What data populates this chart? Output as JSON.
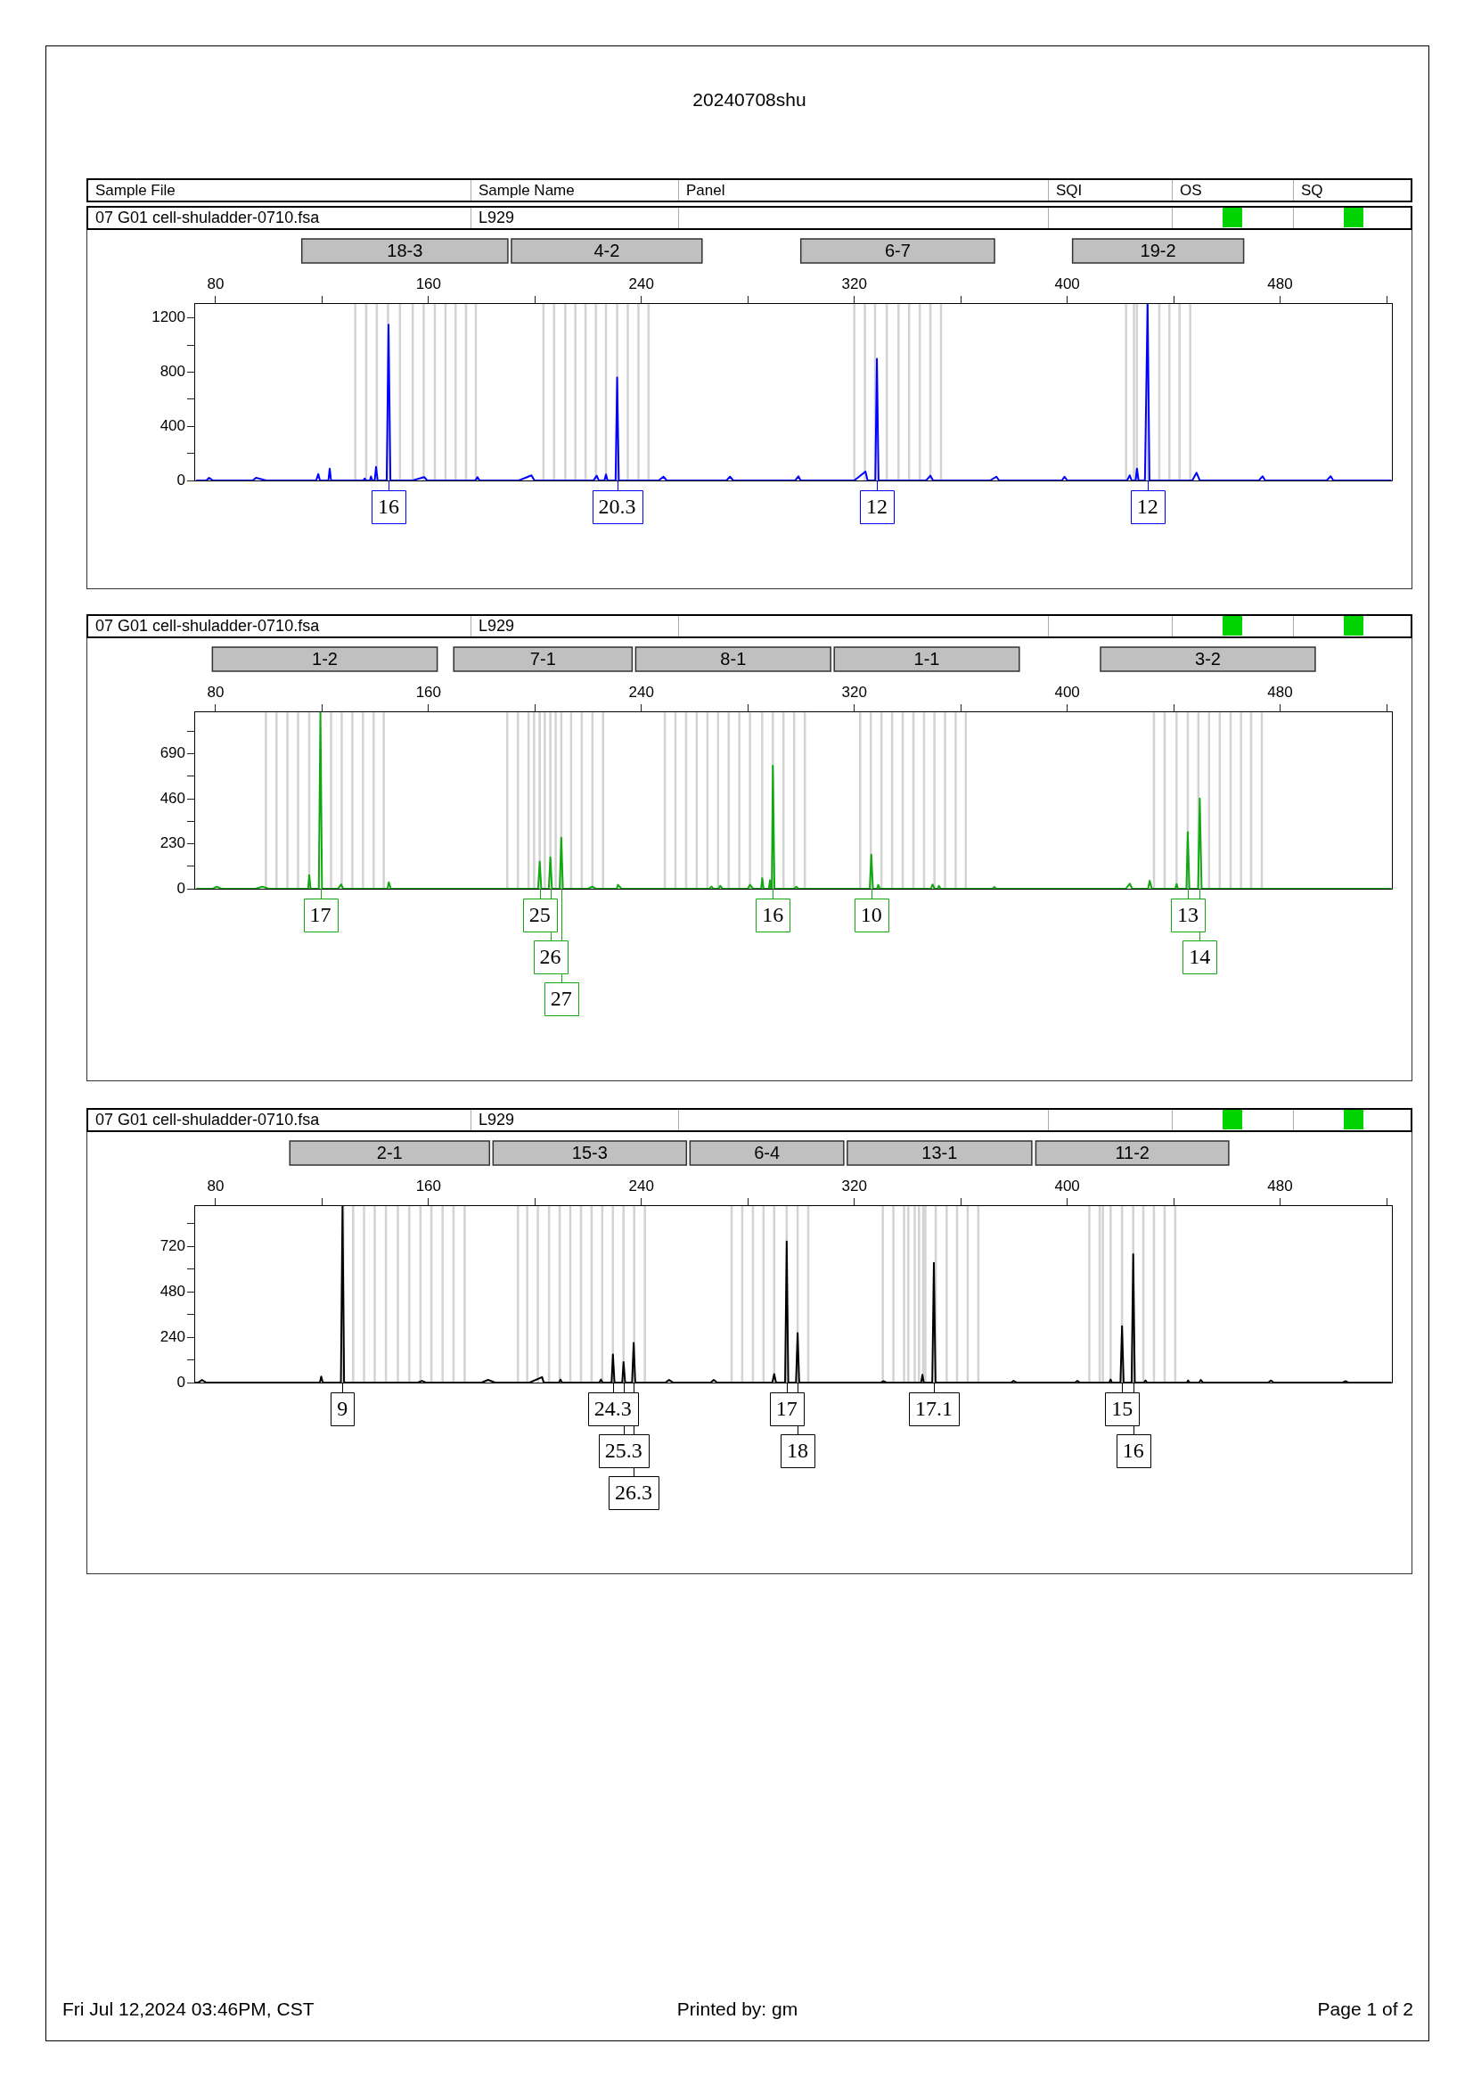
{
  "chart_data": [
    {
      "type": "other",
      "title": "20240708shu",
      "annotations": [
        "Sample File",
        "Sample Name",
        "Panel",
        "SQI",
        "OS",
        "SQ"
      ]
    },
    {
      "type": "line",
      "color": "#0000ff",
      "marker": "none",
      "xlim": [
        72,
        522
      ],
      "xticks": [
        80,
        {
          "value": 120,
          "label": null
        },
        160,
        {
          "value": 200,
          "label": null
        },
        240,
        {
          "value": 280,
          "label": null
        },
        320,
        {
          "value": 360,
          "label": null
        },
        400,
        {
          "value": 440,
          "label": null
        },
        480,
        {
          "value": 520,
          "label": null
        }
      ],
      "ylim": [
        0,
        1310
      ],
      "yticks": [
        0,
        {
          "value": 200,
          "label": null
        },
        400,
        {
          "value": 600,
          "label": null
        },
        800,
        {
          "value": 1000,
          "label": null
        },
        1200
      ],
      "x": [
        73,
        76.5,
        77.6,
        79,
        94,
        95.2,
        99,
        117.8,
        118.6,
        119.2,
        122.4,
        122.9,
        123.4,
        135.5,
        136,
        136.6,
        138,
        138.4,
        138.9,
        139.8,
        140.3,
        140.9,
        144.3,
        145,
        145.7,
        154,
        158.4,
        159.5,
        177.6,
        178.4,
        179.2,
        194,
        198.7,
        199.8,
        222,
        223.2,
        224,
        226.1,
        226.7,
        227.3,
        230.3,
        230.9,
        231.5,
        246.5,
        248.3,
        249.5,
        272,
        273.3,
        274.5,
        297.8,
        299,
        299.8,
        320,
        324.2,
        325,
        327.9,
        328.5,
        329.1,
        347,
        348.6,
        349.6,
        371,
        373.4,
        374.4,
        398,
        399,
        400,
        422.5,
        423.5,
        424.2,
        425.7,
        426.2,
        426.8,
        429.2,
        430.2,
        430.9,
        447,
        448.6,
        449.8,
        472,
        473.4,
        474.4,
        497.5,
        499,
        500,
        521.5
      ],
      "values": [
        0,
        0,
        20,
        0,
        0,
        20,
        0,
        0,
        47,
        0,
        0,
        88,
        0,
        0,
        15,
        0,
        0,
        30,
        0,
        0,
        100,
        0,
        0,
        1150,
        0,
        0,
        25,
        0,
        0,
        25,
        0,
        0,
        38,
        0,
        0,
        35,
        0,
        0,
        44,
        0,
        0,
        760,
        0,
        0,
        28,
        0,
        0,
        28,
        0,
        0,
        31,
        0,
        0,
        66,
        0,
        0,
        898,
        0,
        0,
        35,
        0,
        0,
        28,
        0,
        0,
        28,
        0,
        0,
        38,
        0,
        0,
        88,
        0,
        0,
        1310,
        0,
        0,
        57,
        0,
        0,
        31,
        0,
        0,
        31,
        0,
        0
      ],
      "annotations": [
        "07 G01 cell-shuladder-0710.fsa",
        "L929",
        "18-3",
        "4-2",
        "6-7",
        "19-2",
        {
          "text": "16",
          "x": 145
        },
        {
          "text": "20.3",
          "x": 230.9
        },
        {
          "text": "12",
          "x": 328.5
        },
        {
          "text": "12",
          "x": 430.2
        }
      ],
      "ref_lines": [
        {
          "axis": "x",
          "value": 132.5,
          "color": "#d3d3d3"
        },
        {
          "axis": "x",
          "value": 136.6,
          "color": "#d3d3d3"
        },
        {
          "axis": "x",
          "value": 140.6,
          "color": "#d3d3d3"
        },
        {
          "axis": "x",
          "value": 144.8,
          "color": "#d3d3d3"
        },
        {
          "axis": "x",
          "value": 149.3,
          "color": "#d3d3d3"
        },
        {
          "axis": "x",
          "value": 154.1,
          "color": "#d3d3d3"
        },
        {
          "axis": "x",
          "value": 158.2,
          "color": "#d3d3d3"
        },
        {
          "axis": "x",
          "value": 162.4,
          "color": "#d3d3d3"
        },
        {
          "axis": "x",
          "value": 166.4,
          "color": "#d3d3d3"
        },
        {
          "axis": "x",
          "value": 170.2,
          "color": "#d3d3d3"
        },
        {
          "axis": "x",
          "value": 174.1,
          "color": "#d3d3d3"
        },
        {
          "axis": "x",
          "value": 177.8,
          "color": "#d3d3d3"
        },
        {
          "axis": "x",
          "value": 203.2,
          "color": "#d3d3d3"
        },
        {
          "axis": "x",
          "value": 207.2,
          "color": "#d3d3d3"
        },
        {
          "axis": "x",
          "value": 211.4,
          "color": "#d3d3d3"
        },
        {
          "axis": "x",
          "value": 215.2,
          "color": "#d3d3d3"
        },
        {
          "axis": "x",
          "value": 219,
          "color": "#d3d3d3"
        },
        {
          "axis": "x",
          "value": 222.9,
          "color": "#d3d3d3"
        },
        {
          "axis": "x",
          "value": 226.7,
          "color": "#d3d3d3"
        },
        {
          "axis": "x",
          "value": 230.9,
          "color": "#d3d3d3"
        },
        {
          "axis": "x",
          "value": 234.9,
          "color": "#d3d3d3"
        },
        {
          "axis": "x",
          "value": 238.9,
          "color": "#d3d3d3"
        },
        {
          "axis": "x",
          "value": 242.7,
          "color": "#d3d3d3"
        },
        {
          "axis": "x",
          "value": 320,
          "color": "#d3d3d3"
        },
        {
          "axis": "x",
          "value": 324,
          "color": "#d3d3d3"
        },
        {
          "axis": "x",
          "value": 327.8,
          "color": "#d3d3d3"
        },
        {
          "axis": "x",
          "value": 332.2,
          "color": "#d3d3d3"
        },
        {
          "axis": "x",
          "value": 336.6,
          "color": "#d3d3d3"
        },
        {
          "axis": "x",
          "value": 340.6,
          "color": "#d3d3d3"
        },
        {
          "axis": "x",
          "value": 344.6,
          "color": "#d3d3d3"
        },
        {
          "axis": "x",
          "value": 348.6,
          "color": "#d3d3d3"
        },
        {
          "axis": "x",
          "value": 352.6,
          "color": "#d3d3d3"
        },
        {
          "axis": "x",
          "value": 422.1,
          "color": "#d3d3d3"
        },
        {
          "axis": "x",
          "value": 425.1,
          "color": "#d3d3d3"
        },
        {
          "axis": "x",
          "value": 426.2,
          "color": "#d3d3d3"
        },
        {
          "axis": "x",
          "value": 430.2,
          "color": "#d3d3d3"
        },
        {
          "axis": "x",
          "value": 434.6,
          "color": "#d3d3d3"
        },
        {
          "axis": "x",
          "value": 438.4,
          "color": "#d3d3d3"
        },
        {
          "axis": "x",
          "value": 442.2,
          "color": "#d3d3d3"
        },
        {
          "axis": "x",
          "value": 446.2,
          "color": "#d3d3d3"
        }
      ]
    },
    {
      "type": "line",
      "color": "#12a812",
      "marker": "none",
      "xlim": [
        72,
        522
      ],
      "xticks": [
        80,
        {
          "value": 120,
          "label": null
        },
        160,
        {
          "value": 200,
          "label": null
        },
        240,
        {
          "value": 280,
          "label": null
        },
        320,
        {
          "value": 360,
          "label": null
        },
        400,
        {
          "value": 440,
          "label": null
        },
        480,
        {
          "value": 520,
          "label": null
        }
      ],
      "ylim": [
        0,
        907
      ],
      "yticks": [
        0,
        {
          "value": 115,
          "label": null
        },
        230,
        {
          "value": 345,
          "label": null
        },
        460,
        {
          "value": 575,
          "label": null
        },
        690,
        {
          "value": 805,
          "label": null
        }
      ],
      "x": [
        73,
        79,
        80.5,
        82,
        95,
        97.6,
        100,
        114.8,
        115.2,
        115.7,
        118.8,
        119.4,
        120,
        126,
        127.2,
        128,
        144.6,
        145.1,
        145.8,
        201.2,
        201.8,
        202.4,
        205.2,
        205.8,
        206.4,
        209.3,
        209.9,
        210.5,
        220,
        221.6,
        223,
        230.8,
        231.2,
        232.5,
        265.5,
        266.4,
        267,
        269,
        269.6,
        270.5,
        280,
        280.8,
        282,
        285,
        285.4,
        285.9,
        287.9,
        288.3,
        288.7,
        289,
        289.4,
        290,
        297.5,
        298.2,
        299,
        325.8,
        326.4,
        327,
        328.6,
        329,
        329.6,
        348.8,
        349.4,
        350.2,
        351.4,
        351.8,
        352.4,
        372,
        372.6,
        373.4,
        422,
        423.5,
        424.4,
        430.4,
        431,
        431.8,
        440.6,
        441.1,
        441.6,
        444.8,
        445.3,
        445.9,
        449.2,
        449.8,
        450.5,
        521.5
      ],
      "values": [
        0,
        0,
        11,
        0,
        0,
        11,
        0,
        0,
        70,
        0,
        0,
        907,
        0,
        0,
        22,
        0,
        0,
        33,
        0,
        0,
        139,
        0,
        0,
        161,
        0,
        0,
        261,
        0,
        0,
        11,
        0,
        0,
        20,
        0,
        0,
        11,
        0,
        0,
        15,
        0,
        0,
        20,
        0,
        0,
        54,
        0,
        0,
        43,
        0,
        0,
        629,
        0,
        0,
        10,
        0,
        0,
        174,
        0,
        0,
        20,
        0,
        0,
        22,
        0,
        0,
        15,
        0,
        0,
        9,
        0,
        0,
        26,
        0,
        0,
        41,
        0,
        0,
        24,
        0,
        0,
        289,
        0,
        0,
        461,
        0,
        0
      ],
      "annotations": [
        "07 G01 cell-shuladder-0710.fsa",
        "L929",
        "1-2",
        "7-1",
        "8-1",
        "1-1",
        "3-2",
        {
          "text": "17",
          "x": 119.4
        },
        {
          "text": "25",
          "x": 201.8
        },
        {
          "text": "26",
          "x": 205.8
        },
        {
          "text": "27",
          "x": 209.9
        },
        {
          "text": "16",
          "x": 289.4
        },
        {
          "text": "10",
          "x": 326.4
        },
        {
          "text": "13",
          "x": 445.3
        },
        {
          "text": "14",
          "x": 449.8
        }
      ],
      "ref_lines": [
        {
          "axis": "x",
          "value": 98.9,
          "color": "#d3d3d3"
        },
        {
          "axis": "x",
          "value": 102.9,
          "color": "#d3d3d3"
        },
        {
          "axis": "x",
          "value": 107,
          "color": "#d3d3d3"
        },
        {
          "axis": "x",
          "value": 111,
          "color": "#d3d3d3"
        },
        {
          "axis": "x",
          "value": 115.2,
          "color": "#d3d3d3"
        },
        {
          "axis": "x",
          "value": 123.4,
          "color": "#d3d3d3"
        },
        {
          "axis": "x",
          "value": 127.4,
          "color": "#d3d3d3"
        },
        {
          "axis": "x",
          "value": 131.4,
          "color": "#d3d3d3"
        },
        {
          "axis": "x",
          "value": 135.4,
          "color": "#d3d3d3"
        },
        {
          "axis": "x",
          "value": 139.4,
          "color": "#d3d3d3"
        },
        {
          "axis": "x",
          "value": 143.2,
          "color": "#d3d3d3"
        },
        {
          "axis": "x",
          "value": 189.6,
          "color": "#d3d3d3"
        },
        {
          "axis": "x",
          "value": 193.6,
          "color": "#d3d3d3"
        },
        {
          "axis": "x",
          "value": 197.6,
          "color": "#d3d3d3"
        },
        {
          "axis": "x",
          "value": 199.7,
          "color": "#d3d3d3"
        },
        {
          "axis": "x",
          "value": 201.8,
          "color": "#d3d3d3"
        },
        {
          "axis": "x",
          "value": 203.7,
          "color": "#d3d3d3"
        },
        {
          "axis": "x",
          "value": 205.8,
          "color": "#d3d3d3"
        },
        {
          "axis": "x",
          "value": 207.8,
          "color": "#d3d3d3"
        },
        {
          "axis": "x",
          "value": 209.9,
          "color": "#d3d3d3"
        },
        {
          "axis": "x",
          "value": 213.6,
          "color": "#d3d3d3"
        },
        {
          "axis": "x",
          "value": 217.6,
          "color": "#d3d3d3"
        },
        {
          "axis": "x",
          "value": 221.6,
          "color": "#d3d3d3"
        },
        {
          "axis": "x",
          "value": 225.6,
          "color": "#d3d3d3"
        },
        {
          "axis": "x",
          "value": 248.8,
          "color": "#d3d3d3"
        },
        {
          "axis": "x",
          "value": 252.8,
          "color": "#d3d3d3"
        },
        {
          "axis": "x",
          "value": 256.8,
          "color": "#d3d3d3"
        },
        {
          "axis": "x",
          "value": 260.8,
          "color": "#d3d3d3"
        },
        {
          "axis": "x",
          "value": 264.8,
          "color": "#d3d3d3"
        },
        {
          "axis": "x",
          "value": 268.8,
          "color": "#d3d3d3"
        },
        {
          "axis": "x",
          "value": 272.8,
          "color": "#d3d3d3"
        },
        {
          "axis": "x",
          "value": 276.8,
          "color": "#d3d3d3"
        },
        {
          "axis": "x",
          "value": 280.8,
          "color": "#d3d3d3"
        },
        {
          "axis": "x",
          "value": 285.4,
          "color": "#d3d3d3"
        },
        {
          "axis": "x",
          "value": 289.4,
          "color": "#d3d3d3"
        },
        {
          "axis": "x",
          "value": 293.4,
          "color": "#d3d3d3"
        },
        {
          "axis": "x",
          "value": 297.4,
          "color": "#d3d3d3"
        },
        {
          "axis": "x",
          "value": 301.4,
          "color": "#d3d3d3"
        },
        {
          "axis": "x",
          "value": 322.2,
          "color": "#d3d3d3"
        },
        {
          "axis": "x",
          "value": 326.2,
          "color": "#d3d3d3"
        },
        {
          "axis": "x",
          "value": 330.2,
          "color": "#d3d3d3"
        },
        {
          "axis": "x",
          "value": 334.2,
          "color": "#d3d3d3"
        },
        {
          "axis": "x",
          "value": 338.2,
          "color": "#d3d3d3"
        },
        {
          "axis": "x",
          "value": 342.2,
          "color": "#d3d3d3"
        },
        {
          "axis": "x",
          "value": 346.2,
          "color": "#d3d3d3"
        },
        {
          "axis": "x",
          "value": 350.1,
          "color": "#d3d3d3"
        },
        {
          "axis": "x",
          "value": 354.1,
          "color": "#d3d3d3"
        },
        {
          "axis": "x",
          "value": 358.1,
          "color": "#d3d3d3"
        },
        {
          "axis": "x",
          "value": 361.9,
          "color": "#d3d3d3"
        },
        {
          "axis": "x",
          "value": 432.6,
          "color": "#d3d3d3"
        },
        {
          "axis": "x",
          "value": 436.6,
          "color": "#d3d3d3"
        },
        {
          "axis": "x",
          "value": 441.1,
          "color": "#d3d3d3"
        },
        {
          "axis": "x",
          "value": 445.3,
          "color": "#d3d3d3"
        },
        {
          "axis": "x",
          "value": 449.3,
          "color": "#d3d3d3"
        },
        {
          "axis": "x",
          "value": 453.3,
          "color": "#d3d3d3"
        },
        {
          "axis": "x",
          "value": 457.3,
          "color": "#d3d3d3"
        },
        {
          "axis": "x",
          "value": 461.4,
          "color": "#d3d3d3"
        },
        {
          "axis": "x",
          "value": 465.3,
          "color": "#d3d3d3"
        },
        {
          "axis": "x",
          "value": 469.1,
          "color": "#d3d3d3"
        },
        {
          "axis": "x",
          "value": 473.1,
          "color": "#d3d3d3"
        }
      ]
    },
    {
      "type": "line",
      "color": "#000000",
      "marker": "none",
      "xlim": [
        72,
        522
      ],
      "xticks": [
        80,
        {
          "value": 120,
          "label": null
        },
        160,
        {
          "value": 200,
          "label": null
        },
        240,
        {
          "value": 280,
          "label": null
        },
        320,
        {
          "value": 360,
          "label": null
        },
        400,
        {
          "value": 440,
          "label": null
        },
        480,
        {
          "value": 520,
          "label": null
        }
      ],
      "ylim": [
        0,
        939
      ],
      "yticks": [
        0,
        {
          "value": 120,
          "label": null
        },
        240,
        {
          "value": 360,
          "label": null
        },
        480,
        {
          "value": 600,
          "label": null
        },
        720,
        {
          "value": 840,
          "label": null
        }
      ],
      "x": [
        72.5,
        73.5,
        74.9,
        76.5,
        119.2,
        119.7,
        120.3,
        127.1,
        127.7,
        128.3,
        156,
        157.6,
        159,
        180,
        182.4,
        185,
        198,
        202.7,
        203.3,
        209,
        209.6,
        210.2,
        224.2,
        224.8,
        225.4,
        228.8,
        229.3,
        229.9,
        232.8,
        233.3,
        233.9,
        236.5,
        237.1,
        237.7,
        249,
        250.4,
        252,
        266,
        267.2,
        268.5,
        289.2,
        289.9,
        290.6,
        294,
        294.6,
        295.2,
        298.1,
        298.7,
        299.3,
        330,
        331,
        332,
        345.1,
        345.6,
        346.1,
        349.3,
        349.9,
        350.5,
        379,
        379.8,
        381,
        403,
        403.8,
        404.8,
        415.8,
        416.3,
        416.8,
        420,
        420.6,
        421.2,
        424.2,
        424.8,
        425.4,
        428.8,
        429.4,
        430,
        445,
        445.4,
        446,
        449.6,
        450.2,
        451,
        475.5,
        476.6,
        477.6,
        503.5,
        504.6,
        505.6,
        521.5
      ],
      "values": [
        0,
        0,
        14,
        0,
        0,
        32,
        0,
        0,
        939,
        0,
        0,
        9,
        0,
        0,
        14,
        0,
        0,
        29,
        0,
        0,
        16,
        0,
        0,
        16,
        0,
        0,
        149,
        0,
        0,
        108,
        0,
        0,
        210,
        0,
        0,
        14,
        0,
        0,
        14,
        0,
        0,
        45,
        0,
        0,
        747,
        0,
        0,
        262,
        0,
        0,
        7,
        0,
        0,
        41,
        0,
        0,
        634,
        0,
        0,
        9,
        0,
        0,
        9,
        0,
        0,
        16,
        0,
        0,
        298,
        0,
        0,
        679,
        0,
        0,
        11,
        0,
        0,
        11,
        0,
        0,
        14,
        0,
        0,
        11,
        0,
        0,
        7,
        0,
        0
      ],
      "annotations": [
        "07 G01 cell-shuladder-0710.fsa",
        "L929",
        "2-1",
        "15-3",
        "6-4",
        "13-1",
        "11-2",
        {
          "text": "9",
          "x": 127.7
        },
        {
          "text": "24.3",
          "x": 229.3
        },
        {
          "text": "25.3",
          "x": 233.3
        },
        {
          "text": "26.3",
          "x": 237.1
        },
        {
          "text": "17",
          "x": 294.6
        },
        {
          "text": "18",
          "x": 298.7
        },
        {
          "text": "17.1",
          "x": 349.9
        },
        {
          "text": "15",
          "x": 420.6
        },
        {
          "text": "16",
          "x": 424.8
        }
      ],
      "ref_lines": [
        {
          "axis": "x",
          "value": 128,
          "color": "#d3d3d3"
        },
        {
          "axis": "x",
          "value": 131.7,
          "color": "#d3d3d3"
        },
        {
          "axis": "x",
          "value": 135.8,
          "color": "#d3d3d3"
        },
        {
          "axis": "x",
          "value": 139.8,
          "color": "#d3d3d3"
        },
        {
          "axis": "x",
          "value": 144,
          "color": "#d3d3d3"
        },
        {
          "axis": "x",
          "value": 148.5,
          "color": "#d3d3d3"
        },
        {
          "axis": "x",
          "value": 152.8,
          "color": "#d3d3d3"
        },
        {
          "axis": "x",
          "value": 157,
          "color": "#d3d3d3"
        },
        {
          "axis": "x",
          "value": 161.1,
          "color": "#d3d3d3"
        },
        {
          "axis": "x",
          "value": 165.3,
          "color": "#d3d3d3"
        },
        {
          "axis": "x",
          "value": 169.4,
          "color": "#d3d3d3"
        },
        {
          "axis": "x",
          "value": 173.6,
          "color": "#d3d3d3"
        },
        {
          "axis": "x",
          "value": 193.6,
          "color": "#d3d3d3"
        },
        {
          "axis": "x",
          "value": 197.1,
          "color": "#d3d3d3"
        },
        {
          "axis": "x",
          "value": 201.1,
          "color": "#d3d3d3"
        },
        {
          "axis": "x",
          "value": 205.3,
          "color": "#d3d3d3"
        },
        {
          "axis": "x",
          "value": 209.3,
          "color": "#d3d3d3"
        },
        {
          "axis": "x",
          "value": 213.3,
          "color": "#d3d3d3"
        },
        {
          "axis": "x",
          "value": 217.3,
          "color": "#d3d3d3"
        },
        {
          "axis": "x",
          "value": 221.3,
          "color": "#d3d3d3"
        },
        {
          "axis": "x",
          "value": 225.3,
          "color": "#d3d3d3"
        },
        {
          "axis": "x",
          "value": 229.3,
          "color": "#d3d3d3"
        },
        {
          "axis": "x",
          "value": 233.3,
          "color": "#d3d3d3"
        },
        {
          "axis": "x",
          "value": 237.3,
          "color": "#d3d3d3"
        },
        {
          "axis": "x",
          "value": 241.3,
          "color": "#d3d3d3"
        },
        {
          "axis": "x",
          "value": 273.9,
          "color": "#d3d3d3"
        },
        {
          "axis": "x",
          "value": 277.9,
          "color": "#d3d3d3"
        },
        {
          "axis": "x",
          "value": 281.9,
          "color": "#d3d3d3"
        },
        {
          "axis": "x",
          "value": 285.9,
          "color": "#d3d3d3"
        },
        {
          "axis": "x",
          "value": 289.9,
          "color": "#d3d3d3"
        },
        {
          "axis": "x",
          "value": 294.6,
          "color": "#d3d3d3"
        },
        {
          "axis": "x",
          "value": 298.7,
          "color": "#d3d3d3"
        },
        {
          "axis": "x",
          "value": 302.7,
          "color": "#d3d3d3"
        },
        {
          "axis": "x",
          "value": 330.7,
          "color": "#d3d3d3"
        },
        {
          "axis": "x",
          "value": 334.7,
          "color": "#d3d3d3"
        },
        {
          "axis": "x",
          "value": 338.7,
          "color": "#d3d3d3"
        },
        {
          "axis": "x",
          "value": 340.3,
          "color": "#d3d3d3"
        },
        {
          "axis": "x",
          "value": 342.7,
          "color": "#d3d3d3"
        },
        {
          "axis": "x",
          "value": 344.3,
          "color": "#d3d3d3"
        },
        {
          "axis": "x",
          "value": 345.9,
          "color": "#d3d3d3"
        },
        {
          "axis": "x",
          "value": 346.7,
          "color": "#d3d3d3"
        },
        {
          "axis": "x",
          "value": 350.6,
          "color": "#d3d3d3"
        },
        {
          "axis": "x",
          "value": 354.7,
          "color": "#d3d3d3"
        },
        {
          "axis": "x",
          "value": 358.6,
          "color": "#d3d3d3"
        },
        {
          "axis": "x",
          "value": 362.6,
          "color": "#d3d3d3"
        },
        {
          "axis": "x",
          "value": 366.6,
          "color": "#d3d3d3"
        },
        {
          "axis": "x",
          "value": 408.3,
          "color": "#d3d3d3"
        },
        {
          "axis": "x",
          "value": 412.2,
          "color": "#d3d3d3"
        },
        {
          "axis": "x",
          "value": 413.4,
          "color": "#d3d3d3"
        },
        {
          "axis": "x",
          "value": 416.3,
          "color": "#d3d3d3"
        },
        {
          "axis": "x",
          "value": 420.6,
          "color": "#d3d3d3"
        },
        {
          "axis": "x",
          "value": 424.8,
          "color": "#d3d3d3"
        },
        {
          "axis": "x",
          "value": 428.6,
          "color": "#d3d3d3"
        },
        {
          "axis": "x",
          "value": 432.6,
          "color": "#d3d3d3"
        },
        {
          "axis": "x",
          "value": 436.6,
          "color": "#d3d3d3"
        },
        {
          "axis": "x",
          "value": 440.6,
          "color": "#d3d3d3"
        }
      ]
    },
    {
      "type": "other",
      "annotations": [
        "Fri Jul 12,2024 03:46PM, CST",
        "Printed by: gm",
        "Page 1 of 2"
      ]
    }
  ]
}
